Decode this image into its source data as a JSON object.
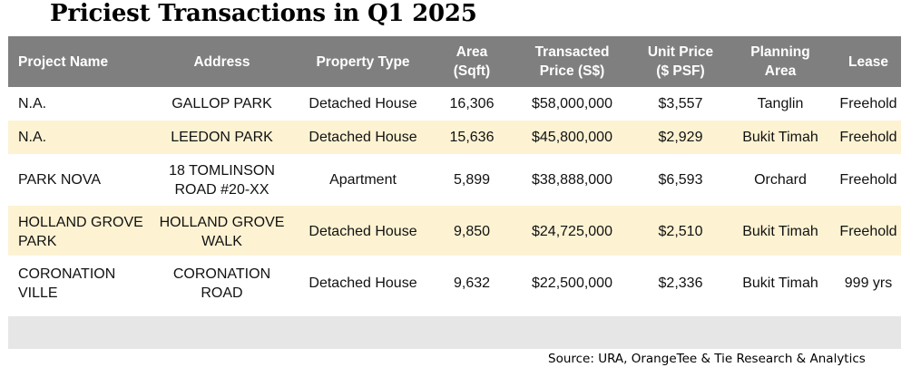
{
  "title": "Priciest Transactions in Q1 2025",
  "columns": [
    {
      "line1": "Project Name",
      "line2": ""
    },
    {
      "line1": "Address",
      "line2": ""
    },
    {
      "line1": "Property Type",
      "line2": ""
    },
    {
      "line1": "Area",
      "line2": "(Sqft)"
    },
    {
      "line1": "Transacted",
      "line2": "Price (S$)"
    },
    {
      "line1": "Unit Price",
      "line2": "($ PSF)"
    },
    {
      "line1": "Planning",
      "line2": "Area"
    },
    {
      "line1": "Lease",
      "line2": ""
    }
  ],
  "rows": [
    {
      "project_name": [
        "N.A."
      ],
      "address": [
        "GALLOP PARK"
      ],
      "property_type": "Detached House",
      "area_sqft": "16,306",
      "transacted_price": "$58,000,000",
      "unit_price_psf": "$3,557",
      "planning_area": "Tanglin",
      "lease": "Freehold"
    },
    {
      "project_name": [
        "N.A."
      ],
      "address": [
        "LEEDON PARK"
      ],
      "property_type": "Detached House",
      "area_sqft": "15,636",
      "transacted_price": "$45,800,000",
      "unit_price_psf": "$2,929",
      "planning_area": "Bukit Timah",
      "lease": "Freehold"
    },
    {
      "project_name": [
        "PARK NOVA"
      ],
      "address": [
        "18 TOMLINSON",
        "ROAD #20-XX"
      ],
      "property_type": "Apartment",
      "area_sqft": "5,899",
      "transacted_price": "$38,888,000",
      "unit_price_psf": "$6,593",
      "planning_area": "Orchard",
      "lease": "Freehold"
    },
    {
      "project_name": [
        "HOLLAND GROVE",
        "PARK"
      ],
      "address": [
        "HOLLAND GROVE",
        "WALK"
      ],
      "property_type": "Detached House",
      "area_sqft": "9,850",
      "transacted_price": "$24,725,000",
      "unit_price_psf": "$2,510",
      "planning_area": "Bukit Timah",
      "lease": "Freehold"
    },
    {
      "project_name": [
        "CORONATION",
        "VILLE"
      ],
      "address": [
        "CORONATION ROAD"
      ],
      "property_type": "Detached House",
      "area_sqft": "9,632",
      "transacted_price": "$22,500,000",
      "unit_price_psf": "$2,336",
      "planning_area": "Bukit Timah",
      "lease": "999 yrs"
    }
  ],
  "source": "Source: URA, OrangeTee & Tie Research & Analytics",
  "colors": {
    "header_bg": "#7f7f7f",
    "header_text": "#ffffff",
    "highlight_row": "#fdf3d3",
    "footer_band": "#e7e6e6"
  }
}
